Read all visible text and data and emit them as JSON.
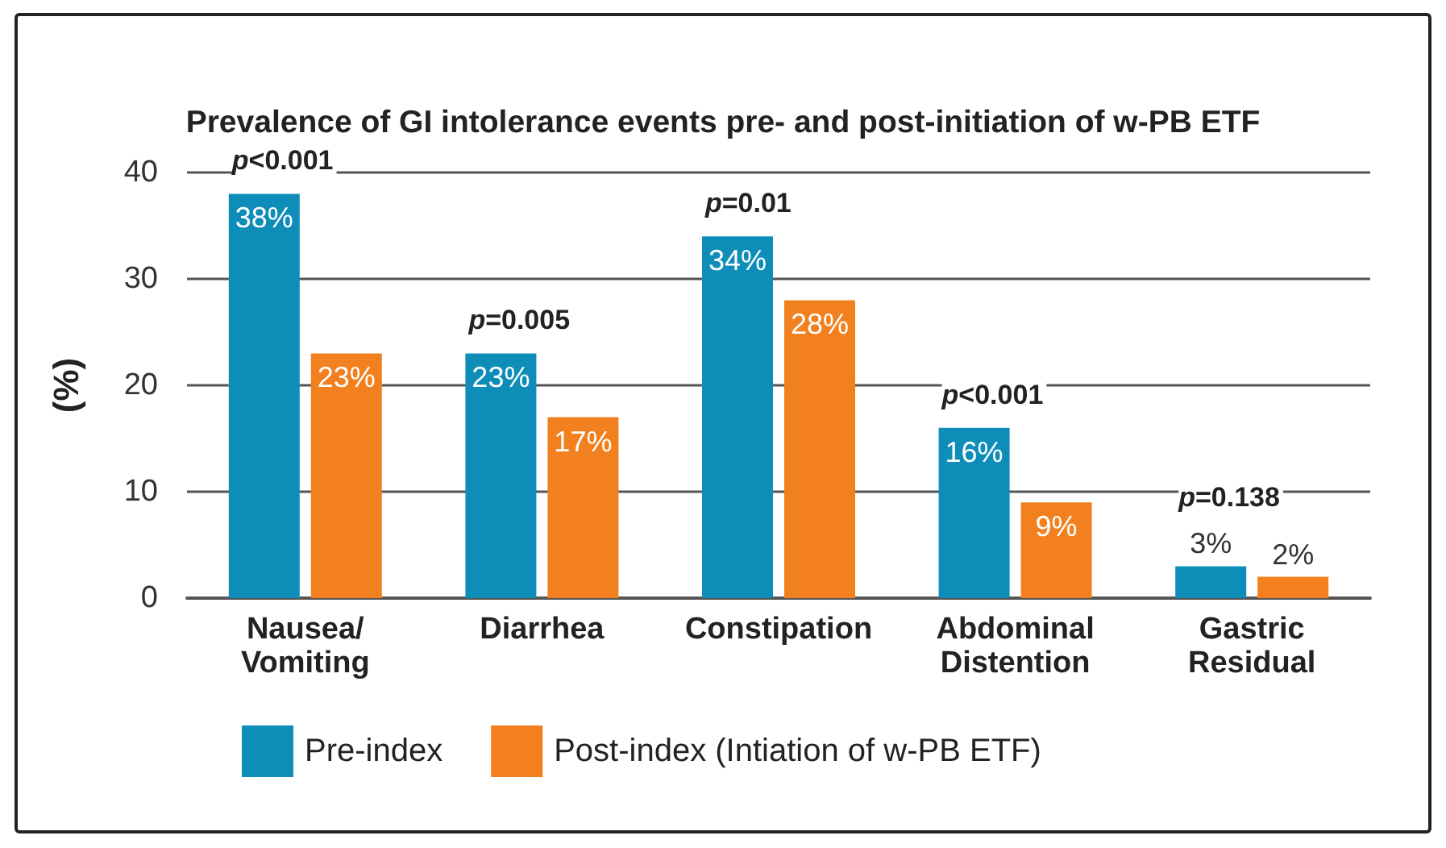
{
  "chart_data": {
    "type": "bar",
    "title": "Prevalence of GI intolerance events pre- and post-initiation of w-PB ETF",
    "ylabel": "(%)",
    "categories": [
      "Nausea/\nVomiting",
      "Diarrhea",
      "Constipation",
      "Abdominal\nDistention",
      "Gastric\nResidual"
    ],
    "series": [
      {
        "name": "Pre-index",
        "color": "#0e8db9",
        "values": [
          38,
          23,
          34,
          16,
          3
        ],
        "value_labels": [
          "38%",
          "23%",
          "34%",
          "16%",
          "3%"
        ]
      },
      {
        "name": "Post-index (Intiation of w-PB ETF)",
        "color": "#f2801f",
        "values": [
          23,
          17,
          28,
          9,
          2
        ],
        "value_labels": [
          "23%",
          "17%",
          "28%",
          "9%",
          "2%"
        ]
      }
    ],
    "ylim": [
      0,
      40
    ],
    "yticks": [
      0,
      10,
      20,
      30,
      40
    ],
    "grid": "y",
    "legend": "bottom",
    "annotations": [
      {
        "text": "p<0.001",
        "x": "Nausea/\nVomiting",
        "y": 38
      },
      {
        "text": "p=0.005",
        "x": "Diarrhea",
        "y": 23
      },
      {
        "text": "p=0.01",
        "x": "Constipation",
        "y": 34
      },
      {
        "text": "p<0.001",
        "x": "Abdominal\nDistention",
        "y": 16
      },
      {
        "text": "p=0.138",
        "x": "Gastric\nResidual",
        "y": 3
      }
    ]
  }
}
